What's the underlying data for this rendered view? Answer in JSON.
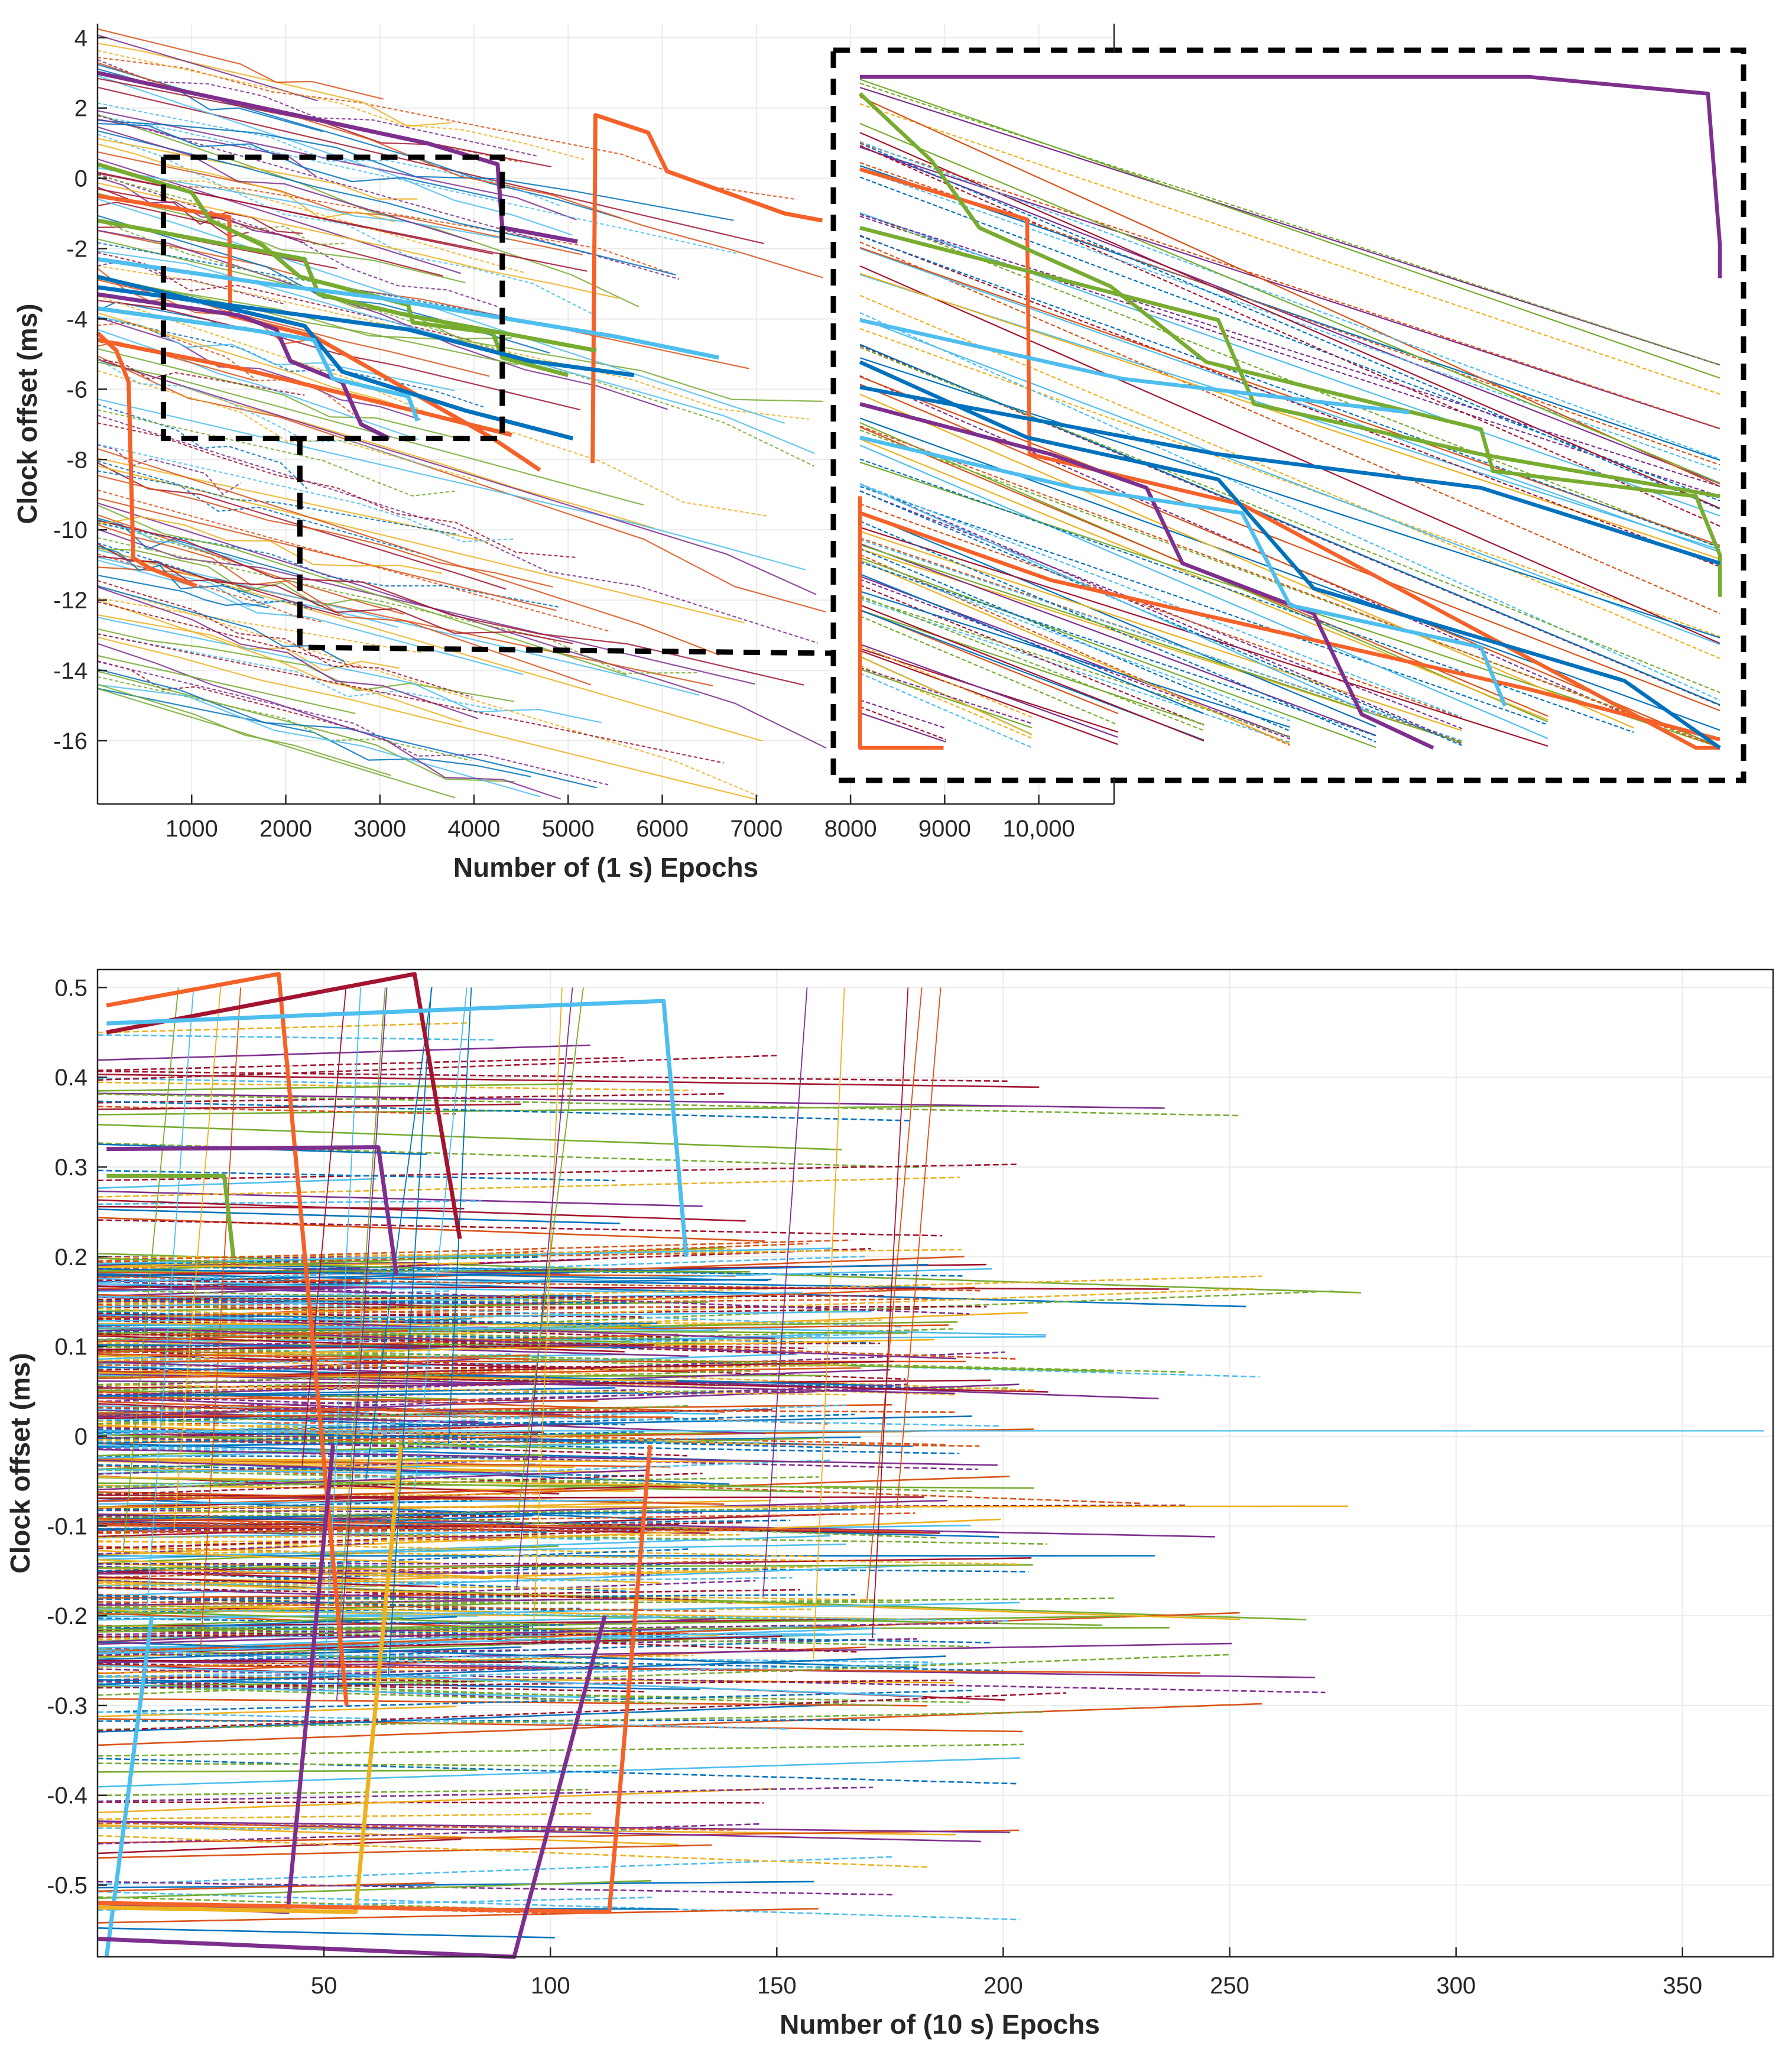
{
  "chart_data": [
    {
      "type": "line",
      "name": "clock-offset-1s-epochs",
      "xlabel": "Number of (1 s) Epochs",
      "ylabel": "Clock offset (ms)",
      "xlim": [
        0,
        10800
      ],
      "ylim": [
        -17.8,
        4.4
      ],
      "xticks": [
        1000,
        2000,
        3000,
        4000,
        5000,
        6000,
        7000,
        8000,
        9000,
        10000
      ],
      "xtick_labels": [
        "1000",
        "2000",
        "3000",
        "4000",
        "5000",
        "6000",
        "7000",
        "8000",
        "9000",
        "10,000"
      ],
      "yticks": [
        4,
        2,
        0,
        -2,
        -4,
        -6,
        -8,
        -10,
        -12,
        -14,
        -16
      ],
      "ytick_labels": [
        "4",
        "2",
        "0",
        "-2",
        "-4",
        "-6",
        "-8",
        "-10",
        "-12",
        "-14",
        "-16"
      ],
      "grid": true,
      "zoom_box": {
        "x": [
          700,
          4300
        ],
        "y": [
          -7.4,
          0.6
        ]
      },
      "inset": {
        "x": [
          8000,
          17000
        ],
        "y": [
          -16.2,
          3.0
        ],
        "description_source": "magnified view of zoom box"
      },
      "highlighted_series": [
        {
          "name": "orange-A",
          "color": "#F4622A",
          "points": [
            [
              5260,
              -8.1
            ],
            [
              5290,
              1.8
            ],
            [
              5850,
              1.3
            ],
            [
              6050,
              0.2
            ],
            [
              7300,
              -1.0
            ],
            [
              7700,
              -1.2
            ]
          ]
        },
        {
          "name": "orange-B",
          "color": "#F4622A",
          "points": [
            [
              0,
              -4.4
            ],
            [
              200,
              -4.9
            ],
            [
              330,
              -5.8
            ],
            [
              380,
              -10.8
            ],
            [
              560,
              -11.1
            ],
            [
              1050,
              -11.6
            ]
          ]
        },
        {
          "name": "orange-C",
          "color": "#F4622A",
          "points": [
            [
              0,
              -0.5
            ],
            [
              1400,
              -1.1
            ],
            [
              1410,
              -3.9
            ],
            [
              2300,
              -4.5
            ],
            [
              4200,
              -7.4
            ],
            [
              4700,
              -8.3
            ]
          ]
        },
        {
          "name": "orange-D",
          "color": "#F4622A",
          "points": [
            [
              0,
              -4.6
            ],
            [
              1500,
              -5.4
            ],
            [
              3500,
              -6.7
            ],
            [
              4400,
              -7.3
            ]
          ]
        },
        {
          "name": "purple-A",
          "color": "#7E2F8E",
          "points": [
            [
              0,
              3.0
            ],
            [
              1400,
              2.2
            ],
            [
              3500,
              1.0
            ],
            [
              4250,
              0.4
            ],
            [
              4300,
              -1.4
            ],
            [
              5100,
              -1.8
            ]
          ]
        },
        {
          "name": "purple-B",
          "color": "#7E2F8E",
          "points": [
            [
              0,
              -3.3
            ],
            [
              1500,
              -3.9
            ],
            [
              1900,
              -4.3
            ],
            [
              2050,
              -5.2
            ],
            [
              2600,
              -5.8
            ],
            [
              2800,
              -7.0
            ],
            [
              3100,
              -7.4
            ]
          ]
        },
        {
          "name": "green-A",
          "color": "#77AC30",
          "points": [
            [
              0,
              0.4
            ],
            [
              1000,
              -0.4
            ],
            [
              1200,
              -1.2
            ],
            [
              1750,
              -1.9
            ],
            [
              2150,
              -2.8
            ],
            [
              3300,
              -3.6
            ],
            [
              3350,
              -4.1
            ],
            [
              4200,
              -4.4
            ],
            [
              4300,
              -5.1
            ],
            [
              5000,
              -5.6
            ]
          ]
        },
        {
          "name": "green-B",
          "color": "#77AC30",
          "points": [
            [
              0,
              -1.2
            ],
            [
              2200,
              -2.3
            ],
            [
              2350,
              -3.3
            ],
            [
              3300,
              -3.9
            ],
            [
              4300,
              -4.4
            ],
            [
              5300,
              -4.9
            ]
          ]
        },
        {
          "name": "blue-A",
          "color": "#0072BD",
          "points": [
            [
              0,
              -2.8
            ],
            [
              1400,
              -3.7
            ],
            [
              2200,
              -4.2
            ],
            [
              2600,
              -5.5
            ],
            [
              3900,
              -6.6
            ],
            [
              5050,
              -7.4
            ]
          ]
        },
        {
          "name": "blue-B",
          "color": "#0072BD",
          "points": [
            [
              0,
              -3.1
            ],
            [
              2200,
              -3.9
            ],
            [
              3300,
              -4.3
            ],
            [
              4600,
              -5.2
            ],
            [
              5700,
              -5.6
            ]
          ]
        },
        {
          "name": "cyan-A",
          "color": "#4DBEEE",
          "points": [
            [
              0,
              -3.7
            ],
            [
              1600,
              -4.3
            ],
            [
              2300,
              -4.6
            ],
            [
              2500,
              -5.7
            ],
            [
              3300,
              -6.2
            ],
            [
              3400,
              -6.9
            ]
          ]
        },
        {
          "name": "cyan-B",
          "color": "#4DBEEE",
          "points": [
            [
              0,
              -2.3
            ],
            [
              1800,
              -3.0
            ],
            [
              3000,
              -3.4
            ],
            [
              5500,
              -4.5
            ],
            [
              6600,
              -5.1
            ]
          ]
        }
      ]
    },
    {
      "type": "line",
      "name": "clock-offset-10s-epochs",
      "xlabel": "Number of (10 s) Epochs",
      "ylabel": "Clock offset (ms)",
      "xlim": [
        0,
        370
      ],
      "ylim": [
        -0.58,
        0.52
      ],
      "xticks": [
        50,
        100,
        150,
        200,
        250,
        300,
        350
      ],
      "xtick_labels": [
        "50",
        "100",
        "150",
        "200",
        "250",
        "300",
        "350"
      ],
      "yticks": [
        0.5,
        0.4,
        0.3,
        0.2,
        0.1,
        0,
        -0.1,
        -0.2,
        -0.3,
        -0.4,
        -0.5
      ],
      "ytick_labels": [
        "0.5",
        "0.4",
        "0.3",
        "0.2",
        "0.1",
        "0",
        "-0.1",
        "-0.2",
        "-0.3",
        "-0.4",
        "-0.5"
      ],
      "grid": true,
      "highlighted_series": [
        {
          "name": "orange-top",
          "color": "#F4622A",
          "points": [
            [
              2,
              0.48
            ],
            [
              40,
              0.515
            ],
            [
              55,
              -0.3
            ]
          ]
        },
        {
          "name": "red-top",
          "color": "#A2142F",
          "points": [
            [
              2,
              0.45
            ],
            [
              70,
              0.515
            ],
            [
              80,
              0.22
            ]
          ]
        },
        {
          "name": "cyan-top",
          "color": "#4DBEEE",
          "points": [
            [
              2,
              0.46
            ],
            [
              125,
              0.485
            ],
            [
              130,
              0.2
            ]
          ]
        },
        {
          "name": "purple-mid",
          "color": "#7E2F8E",
          "points": [
            [
              2,
              0.32
            ],
            [
              62,
              0.322
            ],
            [
              66,
              0.18
            ]
          ]
        },
        {
          "name": "green-mid",
          "color": "#77AC30",
          "points": [
            [
              2,
              0.29
            ],
            [
              28,
              0.29
            ],
            [
              30,
              0.2
            ]
          ]
        },
        {
          "name": "cyan-bottom",
          "color": "#4DBEEE",
          "points": [
            [
              12,
              -0.2
            ],
            [
              2,
              -0.58
            ]
          ]
        },
        {
          "name": "purple-bottom-A",
          "color": "#7E2F8E",
          "points": [
            [
              52,
              -0.01
            ],
            [
              42,
              -0.53
            ],
            [
              0,
              -0.52
            ]
          ]
        },
        {
          "name": "yellow-bottom",
          "color": "#EDB120",
          "points": [
            [
              67,
              -0.01
            ],
            [
              57,
              -0.53
            ],
            [
              0,
              -0.525
            ]
          ]
        },
        {
          "name": "orange-bottom",
          "color": "#F4622A",
          "points": [
            [
              122,
              -0.01
            ],
            [
              113,
              -0.53
            ],
            [
              0,
              -0.52
            ]
          ]
        },
        {
          "name": "purple-bottom-B",
          "color": "#7E2F8E",
          "points": [
            [
              112,
              -0.2
            ],
            [
              92,
              -0.58
            ],
            [
              0,
              -0.56
            ]
          ]
        }
      ]
    }
  ]
}
